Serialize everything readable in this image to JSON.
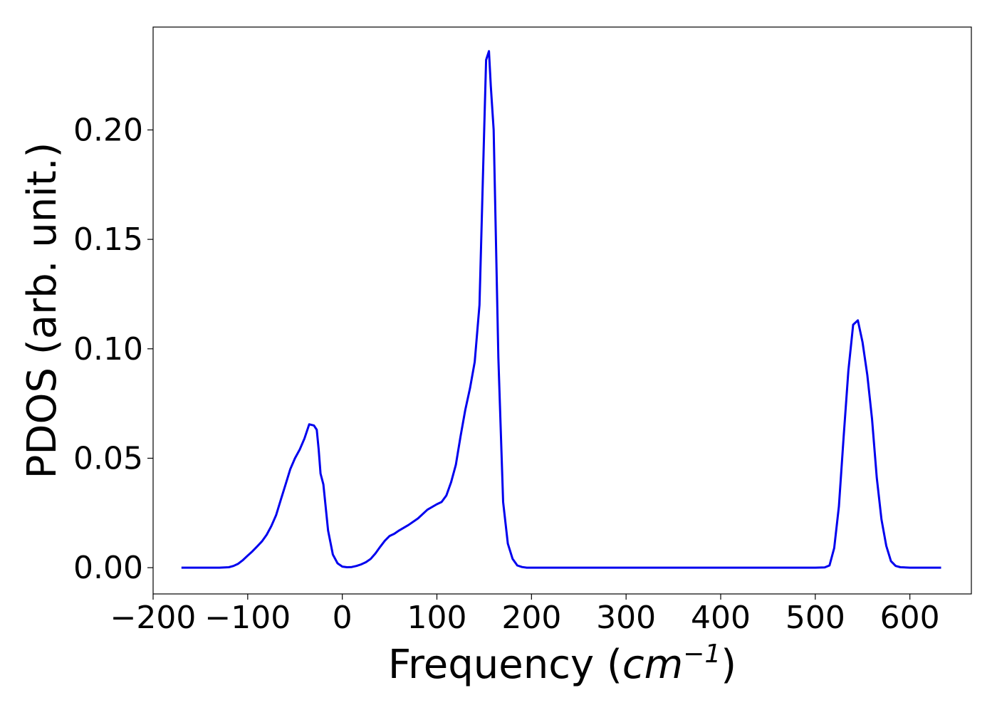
{
  "chart_data": {
    "type": "line",
    "title": "",
    "xlabel": "Frequency",
    "xlabel_unit_prefix": " (",
    "xlabel_unit_italic": "cm",
    "xlabel_unit_exponent": "−1",
    "xlabel_unit_suffix": ")",
    "ylabel": "PDOS (arb. unit.)",
    "xlim": [
      -200,
      665
    ],
    "ylim": [
      -0.012,
      0.247
    ],
    "xticks": [
      -200,
      -100,
      0,
      100,
      200,
      300,
      400,
      500,
      600
    ],
    "xtick_labels": [
      "−200",
      "−100",
      "0",
      "100",
      "200",
      "300",
      "400",
      "500",
      "600"
    ],
    "yticks": [
      0.0,
      0.05,
      0.1,
      0.15,
      0.2
    ],
    "ytick_labels": [
      "0.00",
      "0.05",
      "0.10",
      "0.15",
      "0.20"
    ],
    "grid": false,
    "legend": "none",
    "series": [
      {
        "color": "#0000ee",
        "x": [
          -170,
          -150,
          -130,
          -120,
          -115,
          -110,
          -105,
          -100,
          -95,
          -90,
          -85,
          -80,
          -75,
          -70,
          -65,
          -60,
          -55,
          -50,
          -45,
          -40,
          -35,
          -30,
          -27,
          -25,
          -23,
          -20,
          -15,
          -10,
          -5,
          0,
          5,
          10,
          15,
          20,
          25,
          30,
          35,
          40,
          45,
          50,
          55,
          60,
          70,
          80,
          90,
          100,
          105,
          110,
          115,
          120,
          125,
          130,
          135,
          140,
          145,
          150,
          152,
          155,
          157,
          160,
          165,
          170,
          175,
          180,
          185,
          190,
          195,
          200,
          250,
          300,
          350,
          400,
          450,
          500,
          510,
          515,
          520,
          525,
          530,
          535,
          540,
          545,
          550,
          555,
          560,
          565,
          570,
          575,
          580,
          585,
          590,
          600,
          633
        ],
        "y": [
          0.0,
          0.0,
          0.0,
          0.0002,
          0.0008,
          0.0018,
          0.0035,
          0.0055,
          0.0075,
          0.0097,
          0.012,
          0.015,
          0.019,
          0.024,
          0.031,
          0.038,
          0.045,
          0.05,
          0.054,
          0.059,
          0.0655,
          0.065,
          0.063,
          0.054,
          0.043,
          0.038,
          0.017,
          0.006,
          0.002,
          0.0005,
          0.0002,
          0.0003,
          0.0008,
          0.0015,
          0.0025,
          0.004,
          0.0065,
          0.0095,
          0.0123,
          0.0145,
          0.0155,
          0.017,
          0.0195,
          0.0225,
          0.0265,
          0.029,
          0.03,
          0.033,
          0.039,
          0.047,
          0.06,
          0.072,
          0.082,
          0.094,
          0.12,
          0.2,
          0.232,
          0.236,
          0.22,
          0.2,
          0.096,
          0.03,
          0.011,
          0.004,
          0.001,
          0.0003,
          0.0,
          0.0,
          0.0,
          0.0,
          0.0,
          0.0,
          0.0,
          0.0,
          0.0001,
          0.001,
          0.009,
          0.028,
          0.06,
          0.09,
          0.111,
          0.113,
          0.103,
          0.088,
          0.068,
          0.041,
          0.022,
          0.01,
          0.003,
          0.0008,
          0.0002,
          0.0,
          0.0
        ]
      }
    ]
  }
}
